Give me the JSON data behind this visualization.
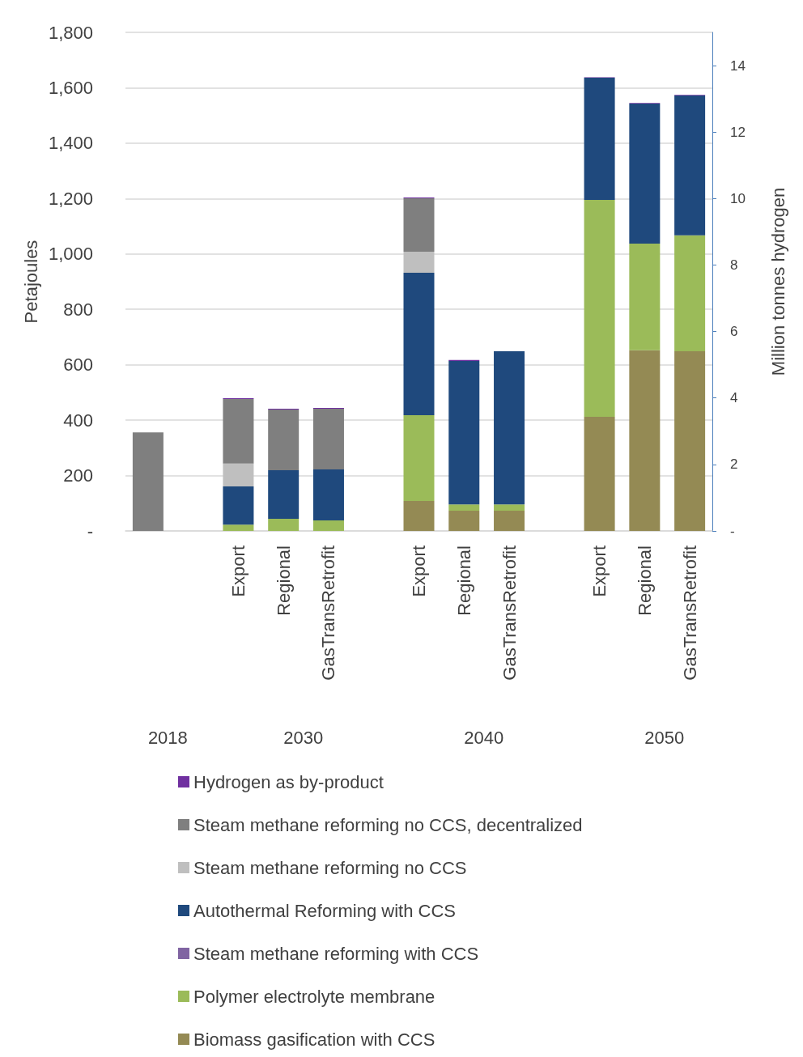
{
  "chart_data": {
    "type": "bar",
    "stacked": true,
    "ylabel": "Petajoules",
    "y2label": "Million tonnes hydrogen",
    "categories": [
      null,
      null,
      "Export",
      "Regional",
      "GasTransRetrofit",
      null,
      "Export",
      "Regional",
      "GasTransRetrofit",
      null,
      "Export",
      "Regional",
      "GasTransRetrofit"
    ],
    "annotations": [
      "2018",
      "2030",
      "2040",
      "2050"
    ],
    "ylim": [
      0,
      1800
    ],
    "yticks": [
      {
        "value": 0,
        "label": "-"
      },
      200,
      400,
      600,
      800,
      {
        "value": 1000,
        "label": "1,000"
      },
      {
        "value": 1200,
        "label": "1,200"
      },
      {
        "value": 1400,
        "label": "1,400"
      },
      {
        "value": 1600,
        "label": "1,600"
      },
      {
        "value": 1800,
        "label": "1,800"
      }
    ],
    "y2lim": [
      0,
      15
    ],
    "y2ticks": [
      {
        "value": 0,
        "label": "-"
      },
      2,
      4,
      6,
      8,
      10,
      12,
      14
    ],
    "grid": "y",
    "legend": "bottom",
    "series": [
      {
        "name": "Biomass gasification with CCS",
        "color": "#948a54",
        "values": [
          null,
          null,
          null,
          null,
          null,
          null,
          108,
          73,
          73,
          null,
          412,
          652,
          649
        ]
      },
      {
        "name": "Polymer electrolyte membrane",
        "color": "#9bbb59",
        "values": [
          null,
          null,
          23,
          44,
          38,
          null,
          310,
          23,
          23,
          null,
          783,
          385,
          418
        ]
      },
      {
        "name": "Steam methane reforming with CCS",
        "color": "#8064a2",
        "values": [
          null,
          null,
          null,
          null,
          null,
          null,
          null,
          null,
          null,
          null,
          null,
          null,
          null
        ]
      },
      {
        "name": "Autothermal Reforming with CCS",
        "color": "#1f497d",
        "values": [
          null,
          null,
          138,
          175,
          184,
          null,
          514,
          518,
          553,
          null,
          441,
          506,
          505
        ]
      },
      {
        "name": "Steam methane reforming no CCS",
        "color": "#bfbfbf",
        "values": [
          null,
          null,
          82,
          null,
          null,
          null,
          76,
          null,
          null,
          null,
          null,
          null,
          null
        ]
      },
      {
        "name": "Steam methane reforming no CCS, decentralized",
        "color": "#7f7f7f",
        "values": [
          356,
          null,
          233,
          219,
          219,
          null,
          193,
          null,
          null,
          null,
          null,
          null,
          null
        ]
      },
      {
        "name": "Hydrogen as by-product",
        "color": "#7030a0",
        "values": [
          null,
          null,
          3,
          3,
          3,
          null,
          3,
          3,
          null,
          null,
          2,
          2,
          2
        ]
      }
    ]
  }
}
